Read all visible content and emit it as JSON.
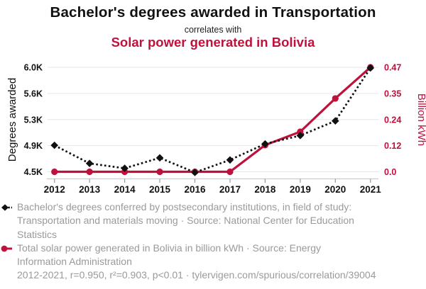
{
  "header": {
    "title": "Bachelor's degrees awarded in Transportation",
    "connector": "correlates with",
    "subtitle": "Solar power generated in Bolivia"
  },
  "colors": {
    "accent_red": "#be123c",
    "series_black": "#111111",
    "legend_gray": "#9a9a9a",
    "gridline": "#e6e6e6",
    "axis_line": "#cccccc",
    "tick_mark": "#999999"
  },
  "chart_data": {
    "type": "line",
    "title": "Bachelor's degrees awarded in Transportation correlates with Solar power generated in Bolivia",
    "x": [
      2012,
      2013,
      2014,
      2015,
      2016,
      2017,
      2018,
      2019,
      2020,
      2021
    ],
    "series": [
      {
        "name": "Bachelor's degrees conferred by postsecondary institutions, in field of study: Transportation and materials moving",
        "axis": "left",
        "line_style": "dashed",
        "marker": "diamond",
        "color": "#111111",
        "values": [
          4880,
          4620,
          4550,
          4700,
          4490,
          4670,
          4900,
          5020,
          5230,
          5990
        ]
      },
      {
        "name": "Total solar power generated in Bolivia in billion kWh",
        "axis": "right",
        "line_style": "solid",
        "marker": "circle",
        "color": "#be123c",
        "values": [
          0.0,
          0.0,
          0.0,
          0.0,
          0.0,
          0.0,
          0.12,
          0.18,
          0.33,
          0.47
        ]
      }
    ],
    "left_axis": {
      "label": "Degrees awarded",
      "ticks": [
        "6.0K",
        "5.6K",
        "5.3K",
        "4.9K",
        "4.5K"
      ],
      "range": [
        4500,
        6000
      ]
    },
    "right_axis": {
      "label": "Billion kWh",
      "ticks": [
        "0.47",
        "0.35",
        "0.24",
        "0.12",
        "0.0"
      ],
      "range": [
        0,
        0.47
      ]
    },
    "grid": true,
    "legend_position": "bottom"
  },
  "legend": {
    "entries": [
      {
        "marker": "black-diamond-dashed-line",
        "text": "Bachelor's degrees conferred by postsecondary institutions, in field of study: Transportation and materials moving · Source: National Center for Education Statistics"
      },
      {
        "marker": "red-circle-solid-line",
        "text": "Total solar power generated in Bolivia in billion kWh · Source: Energy Information Administration"
      }
    ],
    "footnote": "2012-2021, r=0.950, r²=0.903, p<0.01 · tylervigen.com/spurious/correlation/39004"
  }
}
